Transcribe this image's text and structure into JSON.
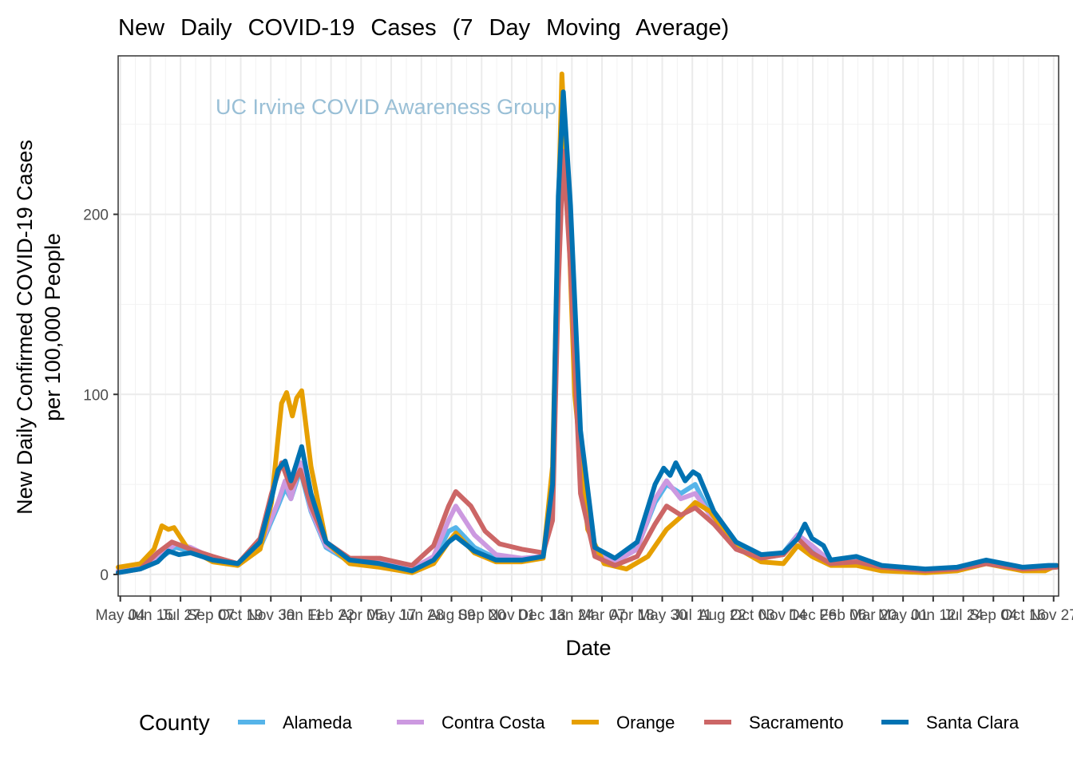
{
  "chart_data": {
    "type": "line",
    "title": "New   Daily   COVID-19     Cases   (7  Day  Moving   Average)",
    "watermark": "UC Irvine COVID Awareness Group",
    "xlabel": "Date",
    "ylabel_lines": [
      "New Daily Confirmed COVID-19 Cases",
      "per 100,000 People"
    ],
    "x_range": [
      "2020-05-01",
      "2023-12-04"
    ],
    "ylim": [
      -12,
      288
    ],
    "y_ticks": [
      0,
      100,
      200
    ],
    "y_tick_labels": [
      "0",
      "100",
      "200"
    ],
    "x_ticks": [
      "2020-05-04",
      "2020-06-15",
      "2020-07-27",
      "2020-09-07",
      "2020-10-19",
      "2020-11-30",
      "2021-01-11",
      "2021-02-22",
      "2021-04-05",
      "2021-05-17",
      "2021-06-28",
      "2021-08-09",
      "2021-09-20",
      "2021-11-01",
      "2021-12-13",
      "2022-01-24",
      "2022-03-07",
      "2022-04-18",
      "2022-05-30",
      "2022-07-11",
      "2022-08-22",
      "2022-10-03",
      "2022-11-14",
      "2022-12-26",
      "2023-02-06",
      "2023-03-20",
      "2023-05-01",
      "2023-06-12",
      "2023-07-24",
      "2023-09-04",
      "2023-10-16",
      "2023-11-27"
    ],
    "x_tick_labels": [
      "May 04",
      "Jun 15",
      "Jul 27",
      "Sep 07",
      "Oct 19",
      "Nov 30",
      "Jan 11",
      "Feb 22",
      "Apr 05",
      "May 17",
      "Jun 28",
      "Aug 09",
      "Sep 20",
      "Nov 01",
      "Dec 13",
      "Jan 24",
      "Mar 07",
      "Apr 18",
      "May 30",
      "Jul 11",
      "Aug 22",
      "Oct 03",
      "Nov 14",
      "Dec 26",
      "Feb 06",
      "Mar 20",
      "May 01",
      "Jun 12",
      "Jul 24",
      "Sep 04",
      "Oct 16",
      "Nov 27"
    ],
    "grid": true,
    "legend": {
      "title": "County",
      "position": "bottom"
    },
    "series": [
      {
        "name": "Alameda",
        "color": "#56B4E9",
        "points": [
          [
            "2020-05-01",
            2
          ],
          [
            "2020-06-01",
            4
          ],
          [
            "2020-06-25",
            8
          ],
          [
            "2020-07-20",
            15
          ],
          [
            "2020-08-10",
            13
          ],
          [
            "2020-09-10",
            8
          ],
          [
            "2020-10-15",
            5
          ],
          [
            "2020-11-15",
            15
          ],
          [
            "2020-12-10",
            38
          ],
          [
            "2020-12-20",
            48
          ],
          [
            "2020-12-28",
            42
          ],
          [
            "2021-01-10",
            58
          ],
          [
            "2021-01-25",
            35
          ],
          [
            "2021-02-15",
            15
          ],
          [
            "2021-03-20",
            7
          ],
          [
            "2021-05-01",
            6
          ],
          [
            "2021-06-15",
            2
          ],
          [
            "2021-07-15",
            8
          ],
          [
            "2021-08-05",
            24
          ],
          [
            "2021-08-15",
            26
          ],
          [
            "2021-09-10",
            15
          ],
          [
            "2021-10-10",
            9
          ],
          [
            "2021-11-15",
            8
          ],
          [
            "2021-12-15",
            10
          ],
          [
            "2021-12-28",
            40
          ],
          [
            "2022-01-05",
            180
          ],
          [
            "2022-01-12",
            255
          ],
          [
            "2022-01-22",
            180
          ],
          [
            "2022-02-05",
            60
          ],
          [
            "2022-02-25",
            12
          ],
          [
            "2022-03-25",
            7
          ],
          [
            "2022-04-25",
            15
          ],
          [
            "2022-05-20",
            40
          ],
          [
            "2022-06-05",
            50
          ],
          [
            "2022-06-25",
            45
          ],
          [
            "2022-07-15",
            50
          ],
          [
            "2022-08-10",
            30
          ],
          [
            "2022-09-10",
            15
          ],
          [
            "2022-10-15",
            9
          ],
          [
            "2022-11-15",
            12
          ],
          [
            "2022-12-05",
            22
          ],
          [
            "2022-12-25",
            15
          ],
          [
            "2023-01-20",
            7
          ],
          [
            "2023-02-25",
            8
          ],
          [
            "2023-04-01",
            4
          ],
          [
            "2023-06-01",
            2
          ],
          [
            "2023-07-15",
            3
          ],
          [
            "2023-08-25",
            7
          ],
          [
            "2023-10-15",
            3
          ],
          [
            "2023-12-01",
            4
          ]
        ]
      },
      {
        "name": "Contra Costa",
        "color": "#CC99E0",
        "points": [
          [
            "2020-05-01",
            2
          ],
          [
            "2020-06-01",
            4
          ],
          [
            "2020-06-25",
            9
          ],
          [
            "2020-07-20",
            17
          ],
          [
            "2020-08-10",
            15
          ],
          [
            "2020-09-10",
            9
          ],
          [
            "2020-10-15",
            6
          ],
          [
            "2020-11-15",
            16
          ],
          [
            "2020-12-10",
            40
          ],
          [
            "2020-12-20",
            52
          ],
          [
            "2020-12-28",
            42
          ],
          [
            "2021-01-10",
            62
          ],
          [
            "2021-01-25",
            36
          ],
          [
            "2021-02-15",
            16
          ],
          [
            "2021-03-20",
            8
          ],
          [
            "2021-05-01",
            7
          ],
          [
            "2021-06-15",
            3
          ],
          [
            "2021-07-15",
            10
          ],
          [
            "2021-08-05",
            30
          ],
          [
            "2021-08-15",
            38
          ],
          [
            "2021-09-10",
            22
          ],
          [
            "2021-10-10",
            11
          ],
          [
            "2021-11-15",
            9
          ],
          [
            "2021-12-15",
            10
          ],
          [
            "2021-12-28",
            45
          ],
          [
            "2022-01-05",
            185
          ],
          [
            "2022-01-12",
            250
          ],
          [
            "2022-01-22",
            175
          ],
          [
            "2022-02-05",
            55
          ],
          [
            "2022-02-25",
            12
          ],
          [
            "2022-03-25",
            7
          ],
          [
            "2022-04-25",
            14
          ],
          [
            "2022-05-20",
            42
          ],
          [
            "2022-06-05",
            52
          ],
          [
            "2022-06-25",
            42
          ],
          [
            "2022-07-15",
            45
          ],
          [
            "2022-08-10",
            30
          ],
          [
            "2022-09-10",
            14
          ],
          [
            "2022-10-15",
            9
          ],
          [
            "2022-11-15",
            11
          ],
          [
            "2022-12-05",
            22
          ],
          [
            "2022-12-25",
            16
          ],
          [
            "2023-01-20",
            7
          ],
          [
            "2023-02-25",
            8
          ],
          [
            "2023-04-01",
            4
          ],
          [
            "2023-06-01",
            2
          ],
          [
            "2023-07-15",
            3
          ],
          [
            "2023-08-25",
            7
          ],
          [
            "2023-10-15",
            3
          ],
          [
            "2023-12-01",
            4
          ]
        ]
      },
      {
        "name": "Orange",
        "color": "#E69F00",
        "points": [
          [
            "2020-05-01",
            4
          ],
          [
            "2020-06-01",
            6
          ],
          [
            "2020-06-20",
            14
          ],
          [
            "2020-07-01",
            27
          ],
          [
            "2020-07-10",
            25
          ],
          [
            "2020-07-18",
            26
          ],
          [
            "2020-08-05",
            15
          ],
          [
            "2020-09-10",
            7
          ],
          [
            "2020-10-15",
            5
          ],
          [
            "2020-11-15",
            14
          ],
          [
            "2020-12-01",
            40
          ],
          [
            "2020-12-15",
            95
          ],
          [
            "2020-12-22",
            101
          ],
          [
            "2020-12-30",
            88
          ],
          [
            "2021-01-05",
            98
          ],
          [
            "2021-01-12",
            102
          ],
          [
            "2021-01-25",
            60
          ],
          [
            "2021-02-15",
            18
          ],
          [
            "2021-03-20",
            6
          ],
          [
            "2021-05-01",
            4
          ],
          [
            "2021-06-15",
            1
          ],
          [
            "2021-07-15",
            6
          ],
          [
            "2021-08-05",
            18
          ],
          [
            "2021-08-15",
            23
          ],
          [
            "2021-09-10",
            12
          ],
          [
            "2021-10-10",
            7
          ],
          [
            "2021-11-15",
            7
          ],
          [
            "2021-12-15",
            9
          ],
          [
            "2021-12-28",
            60
          ],
          [
            "2022-01-05",
            200
          ],
          [
            "2022-01-10",
            278
          ],
          [
            "2022-01-18",
            210
          ],
          [
            "2022-01-28",
            100
          ],
          [
            "2022-02-15",
            25
          ],
          [
            "2022-03-10",
            6
          ],
          [
            "2022-04-10",
            3
          ],
          [
            "2022-05-10",
            10
          ],
          [
            "2022-06-05",
            25
          ],
          [
            "2022-06-25",
            32
          ],
          [
            "2022-07-15",
            40
          ],
          [
            "2022-08-05",
            35
          ],
          [
            "2022-09-10",
            15
          ],
          [
            "2022-10-15",
            7
          ],
          [
            "2022-11-15",
            6
          ],
          [
            "2022-12-05",
            16
          ],
          [
            "2022-12-25",
            10
          ],
          [
            "2023-01-20",
            5
          ],
          [
            "2023-02-25",
            5
          ],
          [
            "2023-04-01",
            2
          ],
          [
            "2023-06-01",
            1
          ],
          [
            "2023-07-15",
            2
          ],
          [
            "2023-08-25",
            6
          ],
          [
            "2023-10-15",
            2
          ],
          [
            "2023-11-15",
            2
          ],
          [
            "2023-12-01",
            5
          ]
        ]
      },
      {
        "name": "Sacramento",
        "color": "#CC6666",
        "points": [
          [
            "2020-05-01",
            1
          ],
          [
            "2020-06-01",
            3
          ],
          [
            "2020-06-25",
            12
          ],
          [
            "2020-07-15",
            18
          ],
          [
            "2020-08-10",
            14
          ],
          [
            "2020-09-10",
            10
          ],
          [
            "2020-10-15",
            6
          ],
          [
            "2020-11-15",
            20
          ],
          [
            "2020-12-01",
            45
          ],
          [
            "2020-12-15",
            62
          ],
          [
            "2020-12-28",
            48
          ],
          [
            "2021-01-10",
            58
          ],
          [
            "2021-01-25",
            38
          ],
          [
            "2021-02-15",
            18
          ],
          [
            "2021-03-20",
            9
          ],
          [
            "2021-05-01",
            9
          ],
          [
            "2021-06-15",
            5
          ],
          [
            "2021-07-15",
            16
          ],
          [
            "2021-08-05",
            38
          ],
          [
            "2021-08-15",
            46
          ],
          [
            "2021-09-05",
            38
          ],
          [
            "2021-09-25",
            24
          ],
          [
            "2021-10-15",
            17
          ],
          [
            "2021-11-15",
            14
          ],
          [
            "2021-12-15",
            12
          ],
          [
            "2021-12-28",
            30
          ],
          [
            "2022-01-05",
            160
          ],
          [
            "2022-01-12",
            235
          ],
          [
            "2022-01-22",
            170
          ],
          [
            "2022-02-05",
            45
          ],
          [
            "2022-02-25",
            10
          ],
          [
            "2022-03-25",
            5
          ],
          [
            "2022-04-25",
            10
          ],
          [
            "2022-05-20",
            28
          ],
          [
            "2022-06-05",
            38
          ],
          [
            "2022-06-25",
            33
          ],
          [
            "2022-07-15",
            37
          ],
          [
            "2022-08-10",
            28
          ],
          [
            "2022-09-10",
            14
          ],
          [
            "2022-10-15",
            9
          ],
          [
            "2022-11-15",
            11
          ],
          [
            "2022-12-05",
            20
          ],
          [
            "2022-12-25",
            12
          ],
          [
            "2023-01-20",
            6
          ],
          [
            "2023-02-25",
            7
          ],
          [
            "2023-04-01",
            4
          ],
          [
            "2023-06-01",
            2
          ],
          [
            "2023-07-15",
            3
          ],
          [
            "2023-08-25",
            6
          ],
          [
            "2023-10-15",
            3
          ],
          [
            "2023-12-01",
            4
          ]
        ]
      },
      {
        "name": "Santa Clara",
        "color": "#0072B2",
        "points": [
          [
            "2020-05-01",
            1
          ],
          [
            "2020-06-01",
            3
          ],
          [
            "2020-06-25",
            7
          ],
          [
            "2020-07-10",
            13
          ],
          [
            "2020-07-25",
            11
          ],
          [
            "2020-08-10",
            12
          ],
          [
            "2020-09-10",
            8
          ],
          [
            "2020-10-15",
            6
          ],
          [
            "2020-11-15",
            18
          ],
          [
            "2020-12-01",
            42
          ],
          [
            "2020-12-10",
            58
          ],
          [
            "2020-12-20",
            63
          ],
          [
            "2020-12-28",
            52
          ],
          [
            "2021-01-05",
            62
          ],
          [
            "2021-01-12",
            71
          ],
          [
            "2021-01-25",
            45
          ],
          [
            "2021-02-15",
            18
          ],
          [
            "2021-03-20",
            8
          ],
          [
            "2021-05-01",
            6
          ],
          [
            "2021-06-15",
            2
          ],
          [
            "2021-07-15",
            8
          ],
          [
            "2021-08-05",
            18
          ],
          [
            "2021-08-15",
            21
          ],
          [
            "2021-09-10",
            13
          ],
          [
            "2021-10-10",
            8
          ],
          [
            "2021-11-15",
            8
          ],
          [
            "2021-12-15",
            10
          ],
          [
            "2021-12-28",
            50
          ],
          [
            "2022-01-05",
            210
          ],
          [
            "2022-01-12",
            268
          ],
          [
            "2022-01-22",
            205
          ],
          [
            "2022-02-05",
            80
          ],
          [
            "2022-02-25",
            15
          ],
          [
            "2022-03-25",
            9
          ],
          [
            "2022-04-25",
            18
          ],
          [
            "2022-05-20",
            50
          ],
          [
            "2022-06-01",
            59
          ],
          [
            "2022-06-10",
            55
          ],
          [
            "2022-06-18",
            62
          ],
          [
            "2022-07-01",
            52
          ],
          [
            "2022-07-12",
            57
          ],
          [
            "2022-07-20",
            55
          ],
          [
            "2022-08-10",
            35
          ],
          [
            "2022-09-10",
            18
          ],
          [
            "2022-10-15",
            11
          ],
          [
            "2022-11-15",
            12
          ],
          [
            "2022-12-05",
            20
          ],
          [
            "2022-12-15",
            28
          ],
          [
            "2022-12-25",
            20
          ],
          [
            "2023-01-10",
            16
          ],
          [
            "2023-01-20",
            8
          ],
          [
            "2023-02-25",
            10
          ],
          [
            "2023-04-01",
            5
          ],
          [
            "2023-06-01",
            3
          ],
          [
            "2023-07-15",
            4
          ],
          [
            "2023-08-25",
            8
          ],
          [
            "2023-10-15",
            4
          ],
          [
            "2023-11-20",
            5
          ],
          [
            "2023-12-01",
            5
          ]
        ]
      }
    ]
  }
}
